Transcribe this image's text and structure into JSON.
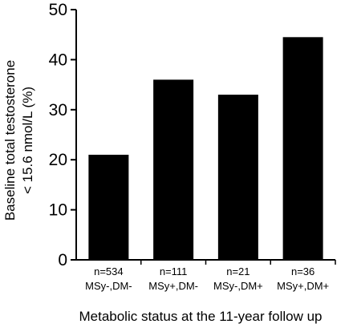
{
  "chart_data": {
    "type": "bar",
    "categories": [
      {
        "n_label": "n=534",
        "status_label": "MSy-,DM-"
      },
      {
        "n_label": "n=111",
        "status_label": "MSy+,DM-"
      },
      {
        "n_label": "n=21",
        "status_label": "MSy-,DM+"
      },
      {
        "n_label": "n=36",
        "status_label": "MSy+,DM+"
      }
    ],
    "values": [
      21,
      36,
      33,
      44.5
    ],
    "ylim": [
      0,
      50
    ],
    "yticks": [
      "0",
      "10",
      "20",
      "30",
      "40",
      "50"
    ],
    "ylabel_line1": "Baseline total testosterone",
    "ylabel_line2": "< 15.6 nmol/L (%)",
    "xlabel": "Metabolic status at the 11-year follow up",
    "bar_color": "#000000",
    "grid": false
  }
}
